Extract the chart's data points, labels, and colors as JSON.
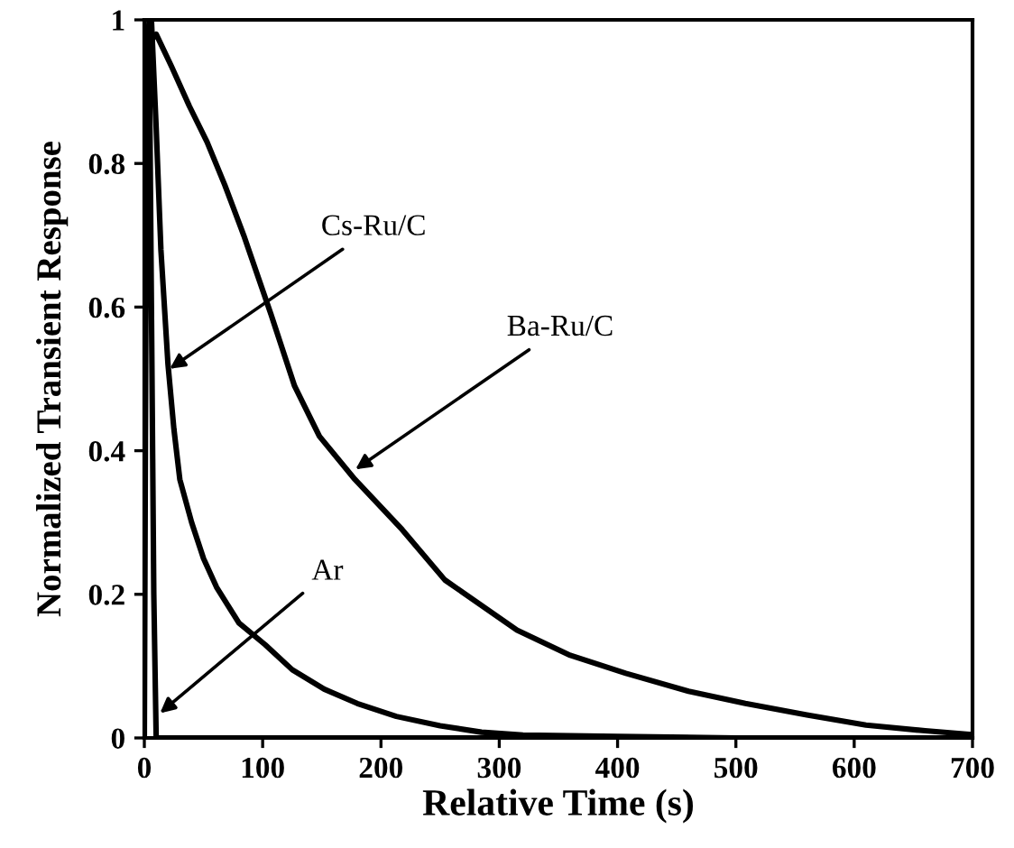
{
  "chart_data": {
    "type": "line",
    "xlabel": "Relative Time (s)",
    "ylabel": "Normalized Transient Response",
    "xlim": [
      0,
      700
    ],
    "ylim": [
      0,
      1
    ],
    "xticks": [
      0,
      100,
      200,
      300,
      400,
      500,
      600,
      700
    ],
    "yticks": [
      0,
      {
        "value": 0.2,
        "label": "0.2"
      },
      {
        "value": 0.4,
        "label": "0.4"
      },
      {
        "value": 0.6,
        "label": "0.6"
      },
      {
        "value": 0.8,
        "label": "0.8"
      },
      1
    ],
    "grid": false,
    "legend": false,
    "marker": "none",
    "line_style": "solid",
    "series": [
      {
        "color": "#000000",
        "x": [
          0,
          2,
          4,
          6,
          8,
          10,
          700
        ],
        "values": [
          0,
          0.9,
          1,
          0.6,
          0.2,
          0,
          0
        ]
      },
      {
        "color": "#000000",
        "x": [
          3,
          6,
          10,
          14,
          20,
          25,
          30,
          40,
          50,
          61,
          80,
          102,
          125,
          152,
          180,
          213,
          250,
          285,
          320,
          400,
          500,
          700
        ],
        "values": [
          0.97,
          1,
          0.85,
          0.68,
          0.52,
          0.43,
          0.36,
          0.3,
          0.25,
          0.21,
          0.16,
          0.13,
          0.095,
          0.068,
          0.048,
          0.03,
          0.017,
          0.008,
          0.004,
          0.002,
          0,
          0
        ]
      },
      {
        "color": "#000000",
        "x": [
          5,
          10,
          23,
          38,
          53,
          68,
          84,
          107,
          127,
          148,
          178,
          218,
          254,
          315,
          360,
          407,
          460,
          508,
          560,
          610,
          660,
          697
        ],
        "values": [
          0.97,
          0.98,
          0.935,
          0.88,
          0.83,
          0.77,
          0.7,
          0.59,
          0.49,
          0.42,
          0.36,
          0.29,
          0.22,
          0.15,
          0.115,
          0.09,
          0.065,
          0.048,
          0.032,
          0.018,
          0.01,
          0.005
        ]
      }
    ],
    "annotations": [
      {
        "text": "Cs-Ru/C",
        "x": 18,
        "y": 0.51
      },
      {
        "text": "Ba-Ru/C",
        "x": 175,
        "y": 0.37
      },
      {
        "text": "Ar",
        "x": 10,
        "y": 0.03
      }
    ]
  }
}
